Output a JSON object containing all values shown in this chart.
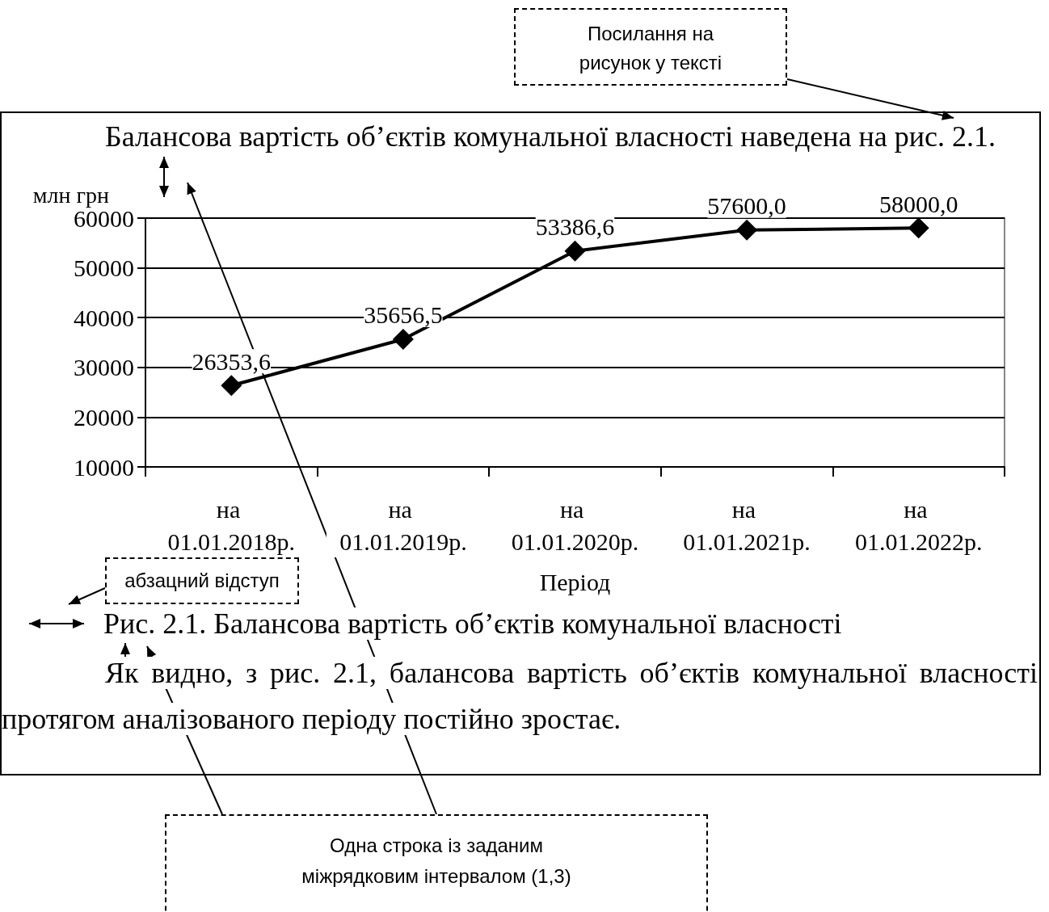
{
  "chart_data": {
    "type": "line",
    "title": "Рис. 2.1. Балансова вартість об’єктів комунальної власності",
    "xlabel": "Період",
    "ylabel": "млн грн",
    "categories": [
      "на 01.01.2018р.",
      "на 01.01.2019р.",
      "на 01.01.2020р.",
      "на 01.01.2021р.",
      "на 01.01.2022р."
    ],
    "series": [
      {
        "color": "#000000",
        "values": [
          26353.6,
          35656.5,
          53386.6,
          57600.0,
          58000.0
        ],
        "value_labels": [
          "26353,6",
          "35656,5",
          "53386,6",
          "57600,0",
          "58000,0"
        ]
      }
    ],
    "ylim": [
      10000,
      60000
    ],
    "yticks": [
      10000,
      20000,
      30000,
      40000,
      50000,
      60000
    ],
    "grid": "y",
    "marker": "diamond",
    "line_style": "solid",
    "annotations": [
      "Посилання на рисунок у тексті",
      "Балансова вартість об’єктів комунальної власності наведена на рис. 2.1.",
      "абзацний відступ",
      "Як видно, з рис. 2.1, балансова вартість об’єктів комунальної власності протягом аналізованого періоду постійно зростає.",
      "Одна строка із заданим міжрядковим інтервалом (1,3)"
    ]
  }
}
